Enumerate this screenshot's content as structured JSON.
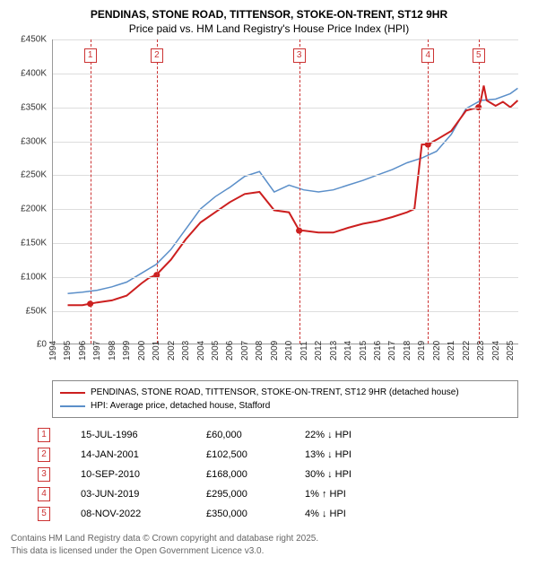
{
  "title": {
    "line1": "PENDINAS, STONE ROAD, TITTENSOR, STOKE-ON-TRENT, ST12 9HR",
    "line2": "Price paid vs. HM Land Registry's House Price Index (HPI)"
  },
  "chart": {
    "type": "line",
    "background_color": "#ffffff",
    "grid_color": "#dddddd",
    "axis_color": "#999999",
    "x_min": 1994,
    "x_max": 2025.6,
    "y_min": 0,
    "y_max": 450000,
    "y_ticks": [
      0,
      50000,
      100000,
      150000,
      200000,
      250000,
      300000,
      350000,
      400000,
      450000
    ],
    "y_tick_labels": [
      "£0",
      "£50K",
      "£100K",
      "£150K",
      "£200K",
      "£250K",
      "£300K",
      "£350K",
      "£400K",
      "£450K"
    ],
    "x_ticks": [
      1994,
      1995,
      1996,
      1997,
      1998,
      1999,
      2000,
      2001,
      2002,
      2003,
      2004,
      2005,
      2006,
      2007,
      2008,
      2009,
      2010,
      2011,
      2012,
      2013,
      2014,
      2015,
      2016,
      2017,
      2018,
      2019,
      2020,
      2021,
      2022,
      2023,
      2024,
      2025
    ],
    "label_fontsize": 10,
    "series_red": {
      "color": "#cc1f1f",
      "width": 2,
      "label": "PENDINAS, STONE ROAD, TITTENSOR, STOKE-ON-TRENT, ST12 9HR (detached house)",
      "points": [
        [
          1995,
          58000
        ],
        [
          1996,
          58000
        ],
        [
          1996.5,
          60000
        ],
        [
          1997,
          62000
        ],
        [
          1998,
          65000
        ],
        [
          1999,
          72000
        ],
        [
          2000,
          90000
        ],
        [
          2000.5,
          98000
        ],
        [
          2001,
          102500
        ],
        [
          2002,
          125000
        ],
        [
          2003,
          155000
        ],
        [
          2004,
          180000
        ],
        [
          2005,
          195000
        ],
        [
          2006,
          210000
        ],
        [
          2007,
          222000
        ],
        [
          2008,
          225000
        ],
        [
          2009,
          198000
        ],
        [
          2010,
          195000
        ],
        [
          2010.7,
          168000
        ],
        [
          2011,
          168000
        ],
        [
          2012,
          165000
        ],
        [
          2013,
          165000
        ],
        [
          2014,
          172000
        ],
        [
          2015,
          178000
        ],
        [
          2016,
          182000
        ],
        [
          2017,
          188000
        ],
        [
          2018,
          195000
        ],
        [
          2018.5,
          200000
        ],
        [
          2019,
          295000
        ],
        [
          2019.4,
          295000
        ],
        [
          2020,
          302000
        ],
        [
          2021,
          315000
        ],
        [
          2022,
          345000
        ],
        [
          2022.85,
          350000
        ],
        [
          2023,
          360000
        ],
        [
          2023.2,
          382000
        ],
        [
          2023.4,
          360000
        ],
        [
          2024,
          352000
        ],
        [
          2024.5,
          358000
        ],
        [
          2025,
          350000
        ],
        [
          2025.5,
          360000
        ]
      ],
      "sale_dots": [
        [
          1996.53,
          60000
        ],
        [
          2001.04,
          102500
        ],
        [
          2010.69,
          168000
        ],
        [
          2019.42,
          295000
        ],
        [
          2022.85,
          350000
        ]
      ]
    },
    "series_blue": {
      "color": "#5b8fc9",
      "width": 1.5,
      "label": "HPI: Average price, detached house, Stafford",
      "points": [
        [
          1995,
          75000
        ],
        [
          1996,
          77000
        ],
        [
          1997,
          80000
        ],
        [
          1998,
          85000
        ],
        [
          1999,
          92000
        ],
        [
          2000,
          105000
        ],
        [
          2001,
          118000
        ],
        [
          2002,
          140000
        ],
        [
          2003,
          170000
        ],
        [
          2004,
          200000
        ],
        [
          2005,
          218000
        ],
        [
          2006,
          232000
        ],
        [
          2007,
          248000
        ],
        [
          2008,
          255000
        ],
        [
          2009,
          225000
        ],
        [
          2010,
          235000
        ],
        [
          2011,
          228000
        ],
        [
          2012,
          225000
        ],
        [
          2013,
          228000
        ],
        [
          2014,
          235000
        ],
        [
          2015,
          242000
        ],
        [
          2016,
          250000
        ],
        [
          2017,
          258000
        ],
        [
          2018,
          268000
        ],
        [
          2019,
          275000
        ],
        [
          2020,
          285000
        ],
        [
          2021,
          310000
        ],
        [
          2022,
          348000
        ],
        [
          2023,
          360000
        ],
        [
          2024,
          362000
        ],
        [
          2025,
          370000
        ],
        [
          2025.5,
          378000
        ]
      ]
    },
    "markers": [
      {
        "n": "1",
        "x": 1996.53,
        "y_box": 10
      },
      {
        "n": "2",
        "x": 2001.04,
        "y_box": 10
      },
      {
        "n": "3",
        "x": 2010.69,
        "y_box": 10
      },
      {
        "n": "4",
        "x": 2019.42,
        "y_box": 10
      },
      {
        "n": "5",
        "x": 2022.85,
        "y_box": 10
      }
    ],
    "marker_line_color": "#cc3333"
  },
  "legend": {
    "row1_label": "PENDINAS, STONE ROAD, TITTENSOR, STOKE-ON-TRENT, ST12 9HR (detached house)",
    "row2_label": "HPI: Average price, detached house, Stafford"
  },
  "sales": [
    {
      "n": "1",
      "date": "15-JUL-1996",
      "price": "£60,000",
      "diff": "22% ↓ HPI"
    },
    {
      "n": "2",
      "date": "14-JAN-2001",
      "price": "£102,500",
      "diff": "13% ↓ HPI"
    },
    {
      "n": "3",
      "date": "10-SEP-2010",
      "price": "£168,000",
      "diff": "30% ↓ HPI"
    },
    {
      "n": "4",
      "date": "03-JUN-2019",
      "price": "£295,000",
      "diff": "1% ↑ HPI"
    },
    {
      "n": "5",
      "date": "08-NOV-2022",
      "price": "£350,000",
      "diff": "4% ↓ HPI"
    }
  ],
  "footer": {
    "line1": "Contains HM Land Registry data © Crown copyright and database right 2025.",
    "line2": "This data is licensed under the Open Government Licence v3.0."
  }
}
